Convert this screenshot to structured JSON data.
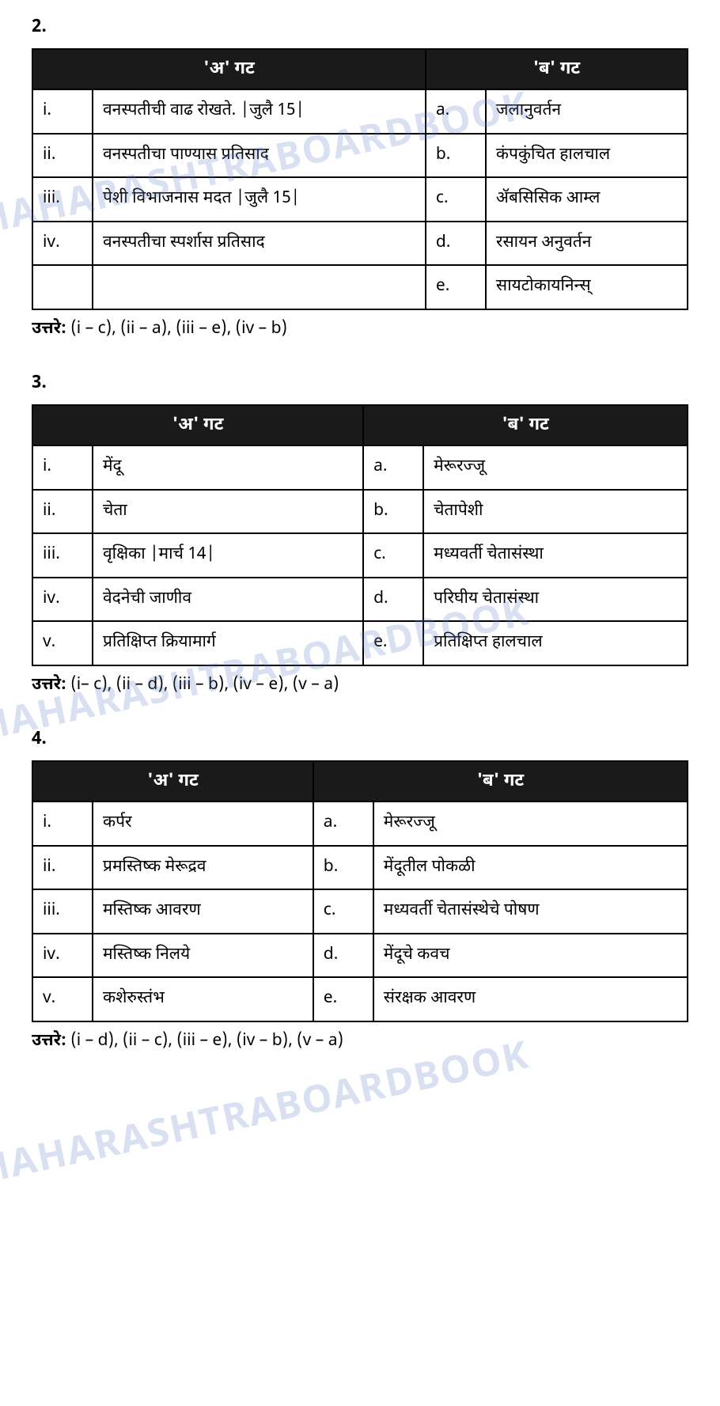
{
  "watermark": "MAHARASHTRABOARDBOOK",
  "questions": [
    {
      "number": "2.",
      "headerA": "'अ' गट",
      "headerB": "'ब' गट",
      "rows": [
        {
          "idx": "i.",
          "a": "वनस्पतीची वाढ रोखते. |जुलै 15|",
          "letter": "a.",
          "b": "जलानुवर्तन"
        },
        {
          "idx": "ii.",
          "a": "वनस्पतीचा पाण्यास प्रतिसाद",
          "letter": "b.",
          "b": "कंपकुंचित हालचाल"
        },
        {
          "idx": "iii.",
          "a": "पेशी विभाजनास मदत |जुलै 15|",
          "letter": "c.",
          "b": "ॲबसिसिक आम्ल"
        },
        {
          "idx": "iv.",
          "a": "वनस्पतीचा स्पर्शास प्रतिसाद",
          "letter": "d.",
          "b": "रसायन अनुवर्तन"
        },
        {
          "idx": "",
          "a": "",
          "letter": "e.",
          "b": "सायटोकायनिन्स्"
        }
      ],
      "answerLabel": "उत्तरे:",
      "answerText": "(i – c), (ii – a), (iii – e), (iv – b)"
    },
    {
      "number": "3.",
      "headerA": "'अ' गट",
      "headerB": "'ब' गट",
      "rows": [
        {
          "idx": "i.",
          "a": "मेंदू",
          "letter": "a.",
          "b": "मेरूरज्जू"
        },
        {
          "idx": "ii.",
          "a": "चेता",
          "letter": "b.",
          "b": "चेतापेशी"
        },
        {
          "idx": "iii.",
          "a": "वृक्षिका |मार्च 14|",
          "letter": "c.",
          "b": "मध्यवर्ती चेतासंस्था"
        },
        {
          "idx": "iv.",
          "a": "वेदनेची जाणीव",
          "letter": "d.",
          "b": "परिघीय चेतासंस्था"
        },
        {
          "idx": "v.",
          "a": "प्रतिक्षिप्त क्रियामार्ग",
          "letter": "e.",
          "b": "प्रतिक्षिप्त हालचाल"
        }
      ],
      "answerLabel": "उत्तरे:",
      "answerText": "(i– c), (ii – d), (iii – b), (iv – e), (v – a)"
    },
    {
      "number": "4.",
      "headerA": "'अ' गट",
      "headerB": "'ब' गट",
      "rows": [
        {
          "idx": "i.",
          "a": "कर्पर",
          "letter": "a.",
          "b": "मेरूरज्जू"
        },
        {
          "idx": "ii.",
          "a": "प्रमस्तिष्क मेरूद्रव",
          "letter": "b.",
          "b": "मेंदूतील पोकळी"
        },
        {
          "idx": "iii.",
          "a": "मस्तिष्क आवरण",
          "letter": "c.",
          "b": "मध्यवर्ती चेतासंस्थेचे पोषण"
        },
        {
          "idx": "iv.",
          "a": "मस्तिष्क निलये",
          "letter": "d.",
          "b": "मेंदूचे कवच"
        },
        {
          "idx": "v.",
          "a": "कशेरुस्तंभ",
          "letter": "e.",
          "b": "संरक्षक आवरण"
        }
      ],
      "answerLabel": "उत्तरे:",
      "answerText": "(i – d), (ii – c), (iii – e), (iv – b), (v – a)"
    }
  ]
}
